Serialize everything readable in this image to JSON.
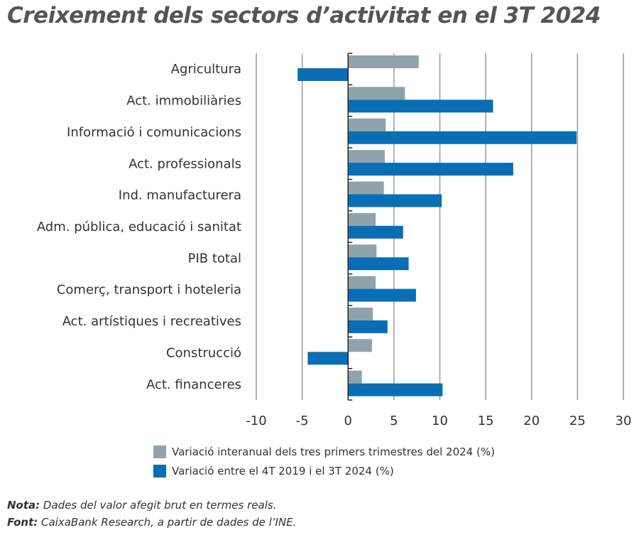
{
  "chart_data": {
    "type": "bar",
    "orientation": "horizontal",
    "title": "Creixement dels sectors d’activitat en el 3T 2024",
    "categories": [
      "Agricultura",
      "Act. immobiliàries",
      "Informació i comunicacions",
      "Act. professionals",
      "Ind. manufacturera",
      "Adm. pública, educació i sanitat",
      "PIB total",
      "Comerç, transport i hoteleria",
      "Act. artístiques i recreatives",
      "Construcció",
      "Act. financeres"
    ],
    "series": [
      {
        "name": "Variació interanual dels tres primers trimestres del 2024 (%)",
        "color": "#8fa3ad",
        "values": [
          7.7,
          6.2,
          4.1,
          4.0,
          3.9,
          3.0,
          3.1,
          3.0,
          2.7,
          2.6,
          1.5
        ]
      },
      {
        "name": "Variació entre el 4T 2019 i el 3T 2024 (%)",
        "color": "#0a6eb5",
        "values": [
          -5.5,
          15.8,
          24.9,
          18.0,
          10.2,
          6.0,
          6.6,
          7.4,
          4.3,
          -4.4,
          10.3
        ]
      }
    ],
    "xlim": [
      -10,
      30
    ],
    "xticks": [
      -10,
      -5,
      0,
      5,
      10,
      15,
      20,
      25,
      30
    ],
    "grid": true,
    "legend_position": "bottom"
  },
  "notes": {
    "nota_label": "Nota:",
    "nota_text": " Dades del valor afegit brut en termes reals.",
    "font_label": "Font:",
    "font_text": " CaixaBank Research, a partir de dades de l’INE."
  }
}
